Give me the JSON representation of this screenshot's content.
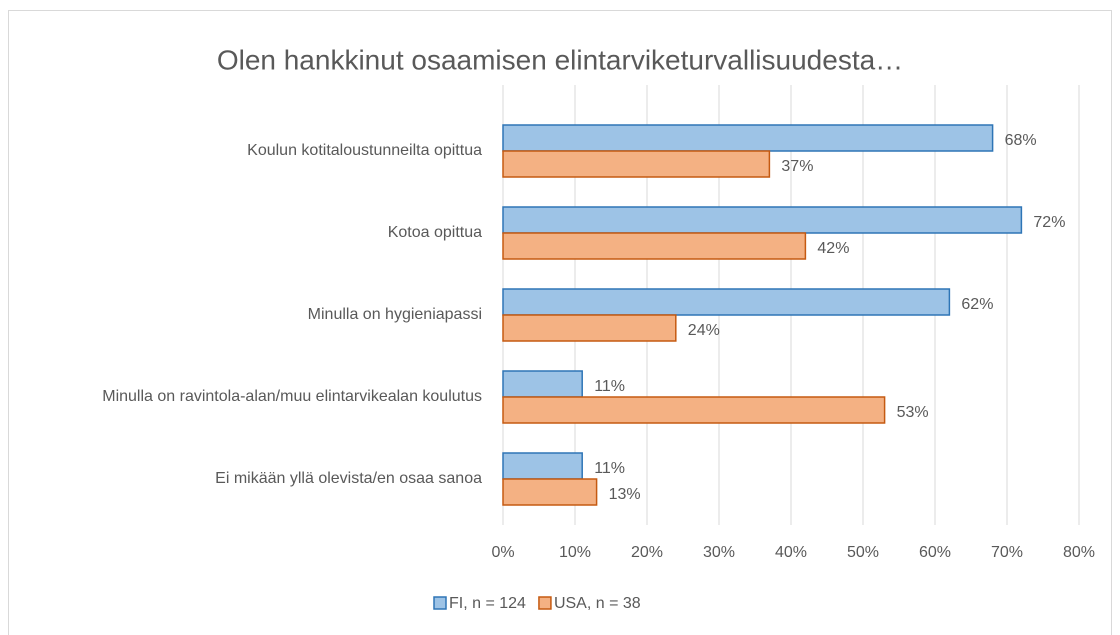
{
  "chart_data": {
    "type": "barh",
    "title": "Olen hankkinut osaamisen elintarviketurvallisuudesta…",
    "categories": [
      "Koulun kotitaloustunneilta opittua",
      "Kotoa opittua",
      "Minulla on hygieniapassi",
      "Minulla on ravintola-alan/muu elintarvikealan koulutus",
      "Ei mikään yllä olevista/en osaa sanoa"
    ],
    "series": [
      {
        "name": "FI, n = 124",
        "color": "#9dc3e6",
        "edge": "#2e75b6",
        "values": [
          68,
          72,
          62,
          11,
          11
        ],
        "value_labels": [
          "68%",
          "72%",
          "62%",
          "11%",
          "11%"
        ]
      },
      {
        "name": "USA, n = 38",
        "color": "#f4b183",
        "edge": "#c55a11",
        "values": [
          37,
          42,
          24,
          53,
          13
        ],
        "value_labels": [
          "37%",
          "42%",
          "24%",
          "53%",
          "13%"
        ]
      }
    ],
    "xlim": [
      0,
      80
    ],
    "xticks": [
      {
        "value": 0,
        "label": "0%"
      },
      {
        "value": 10,
        "label": "10%"
      },
      {
        "value": 20,
        "label": "20%"
      },
      {
        "value": 30,
        "label": "30%"
      },
      {
        "value": 40,
        "label": "40%"
      },
      {
        "value": 50,
        "label": "50%"
      },
      {
        "value": 60,
        "label": "60%"
      },
      {
        "value": 70,
        "label": "70%"
      },
      {
        "value": 80,
        "label": "80%"
      }
    ],
    "grid": true,
    "legend": "bottom"
  }
}
